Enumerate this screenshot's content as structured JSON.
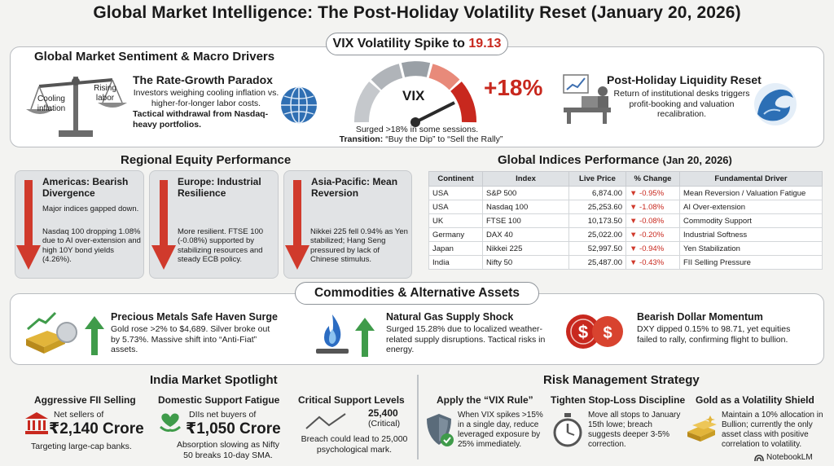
{
  "title": "Global Market Intelligence: The Post-Holiday Volatility Reset (January 20, 2026)",
  "vix": {
    "banner_prefix": "VIX Volatility Spike to ",
    "banner_value": "19.13",
    "gauge_label": "VIX",
    "change": "+18%",
    "note": "Surged >18% in some sessions.",
    "transition_label": "Transition:",
    "transition_text": "“Buy the Dip” to “Sell the Rally”"
  },
  "sentiment": {
    "heading": "Global Market Sentiment & Macro Drivers",
    "scale_left": "Cooling inflation",
    "scale_right": "Rising labor",
    "paradox_title": "The Rate-Growth Paradox",
    "paradox_text": "Investors weighing cooling inflation vs. higher-for-longer labor costs.",
    "paradox_bold": "Tactical withdrawal from Nasdaq-heavy portfolios.",
    "liquidity_title": "Post-Holiday Liquidity Reset",
    "liquidity_text": "Return of institutional desks triggers profit-booking and valuation recalibration."
  },
  "regional": {
    "heading": "Regional Equity Performance",
    "cards": [
      {
        "title": "Americas: Bearish Divergence",
        "text1": "Major indices gapped down.",
        "text2": "Nasdaq 100 dropping 1.08% due to AI over-extension and high 10Y bond yields (4.26%)."
      },
      {
        "title": "Europe: Industrial Resilience",
        "text1": "More resilient. FTSE 100 (-0.08%) supported by stabilizing resources and steady ECB policy.",
        "text2": ""
      },
      {
        "title": "Asia-Pacific: Mean Reversion",
        "text1": "Nikkei 225 fell 0.94% as Yen stabilized; Hang Seng pressured by lack of Chinese stimulus.",
        "text2": ""
      }
    ]
  },
  "indices": {
    "heading": "Global Indices Performance",
    "date": "(Jan 20, 2026)",
    "columns": [
      "Continent",
      "Index",
      "Live Price",
      "% Change",
      "Fundamental Driver"
    ],
    "rows": [
      {
        "continent": "USA",
        "index": "S&P 500",
        "price": "6,874.00",
        "change": "-0.95%",
        "driver": "Mean Reversion / Valuation Fatigue"
      },
      {
        "continent": "USA",
        "index": "Nasdaq 100",
        "price": "25,253.60",
        "change": "-1.08%",
        "driver": "AI Over-extension"
      },
      {
        "continent": "UK",
        "index": "FTSE 100",
        "price": "10,173.50",
        "change": "-0.08%",
        "driver": "Commodity Support"
      },
      {
        "continent": "Germany",
        "index": "DAX 40",
        "price": "25,022.00",
        "change": "-0.20%",
        "driver": "Industrial Softness"
      },
      {
        "continent": "Japan",
        "index": "Nikkei 225",
        "price": "52,997.50",
        "change": "-0.94%",
        "driver": "Yen Stabilization"
      },
      {
        "continent": "India",
        "index": "Nifty 50",
        "price": "25,487.00",
        "change": "-0.43%",
        "driver": "FII Selling Pressure"
      }
    ]
  },
  "commodities": {
    "heading": "Commodities & Alternative Assets",
    "items": [
      {
        "title": "Precious Metals Safe Haven Surge",
        "text": "Gold rose >2% to $4,689. Silver broke out by 5.73%. Massive shift into “Anti-Fiat” assets."
      },
      {
        "title": "Natural Gas Supply Shock",
        "text": "Surged 15.28% due to localized weather-related supply disruptions. Tactical risks in energy."
      },
      {
        "title": "Bearish Dollar Momentum",
        "text": "DXY dipped 0.15% to 98.71, yet equities failed to rally, confirming flight to bullion."
      }
    ]
  },
  "india": {
    "heading": "India Market Spotlight",
    "fii": {
      "title": "Aggressive FII Selling",
      "label": "Net sellers of",
      "value": "₹2,140 Crore",
      "note": "Targeting large-cap banks."
    },
    "dii": {
      "title": "Domestic Support Fatigue",
      "label": "DIIs net buyers of",
      "value": "₹1,050 Crore",
      "note": "Absorption slowing as Nifty 50 breaks 10-day SMA."
    },
    "support": {
      "title": "Critical Support Levels",
      "value": "25,400",
      "sub": "(Critical)",
      "note": "Breach could lead to 25,000 psychological mark."
    }
  },
  "risk": {
    "heading": "Risk Management Strategy",
    "items": [
      {
        "title": "Apply the “VIX Rule”",
        "text": "When VIX spikes >15% in a single day, reduce leveraged exposure by 25% immediately."
      },
      {
        "title": "Tighten Stop-Loss Discipline",
        "text": "Move all stops to January 15th lowe; breach suggests deeper 3-5% correction."
      },
      {
        "title": "Gold as a Volatility Shield",
        "text": "Maintain a 10% allocation in Bullion; currently the only asset class with positive correlation to volatility."
      }
    ]
  },
  "footer": {
    "brand": "NotebookLM"
  },
  "colors": {
    "accent_red": "#c8281e",
    "gauge_red": "#d8432f",
    "gauge_gray": "#9aa0a6"
  }
}
